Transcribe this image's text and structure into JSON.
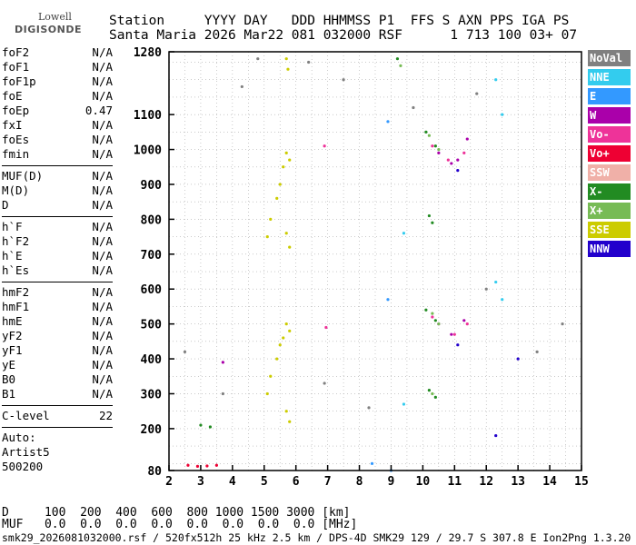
{
  "logo": {
    "line1": "Lowell",
    "line2": "DIGISONDE"
  },
  "header": {
    "line1": "Station     YYYY DAY   DDD HHMMSS P1  FFS S AXN PPS IGA PS",
    "line2": "Santa Maria 2026 Mar22 081 032000 RSF      1 713 100 03+ 07"
  },
  "params": {
    "group1": [
      {
        "k": "foF2",
        "v": "N/A"
      },
      {
        "k": "foF1",
        "v": "N/A"
      },
      {
        "k": "foF1p",
        "v": "N/A"
      },
      {
        "k": "foE",
        "v": "N/A"
      },
      {
        "k": "foEp",
        "v": "0.47"
      },
      {
        "k": "fxI",
        "v": "N/A"
      },
      {
        "k": "foEs",
        "v": "N/A"
      },
      {
        "k": "fmin",
        "v": "N/A"
      }
    ],
    "group2": [
      {
        "k": "MUF(D)",
        "v": "N/A"
      },
      {
        "k": "M(D)",
        "v": "N/A"
      },
      {
        "k": "D",
        "v": "N/A"
      }
    ],
    "group3": [
      {
        "k": "h`F",
        "v": "N/A"
      },
      {
        "k": "h`F2",
        "v": "N/A"
      },
      {
        "k": "h`E",
        "v": "N/A"
      },
      {
        "k": "h`Es",
        "v": "N/A"
      }
    ],
    "group4": [
      {
        "k": "hmF2",
        "v": "N/A"
      },
      {
        "k": "hmF1",
        "v": "N/A"
      },
      {
        "k": "hmE",
        "v": "N/A"
      },
      {
        "k": "yF2",
        "v": "N/A"
      },
      {
        "k": "yF1",
        "v": "N/A"
      },
      {
        "k": "yE",
        "v": "N/A"
      },
      {
        "k": "B0",
        "v": "N/A"
      },
      {
        "k": "B1",
        "v": "N/A"
      }
    ],
    "clevel": {
      "k": "C-level",
      "v": "22"
    },
    "auto": [
      "Auto:",
      "Artist5",
      "500200"
    ]
  },
  "legend": [
    {
      "label": "NoVal",
      "color": "#808080"
    },
    {
      "label": "NNE",
      "color": "#33ccee"
    },
    {
      "label": "E",
      "color": "#3399ff"
    },
    {
      "label": "W",
      "color": "#aa00aa"
    },
    {
      "label": "Vo-",
      "color": "#ee3399"
    },
    {
      "label": "Vo+",
      "color": "#ee0033"
    },
    {
      "label": "SSW",
      "color": "#f0b0a8"
    },
    {
      "label": "X-",
      "color": "#228b22"
    },
    {
      "label": "X+",
      "color": "#77bb55"
    },
    {
      "label": "SSE",
      "color": "#cccc00"
    },
    {
      "label": "NNW",
      "color": "#2200cc"
    }
  ],
  "chart_data": {
    "type": "scatter",
    "title": "",
    "xlabel": "",
    "ylabel": "",
    "xlim": [
      2,
      15
    ],
    "ylim": [
      80,
      1280
    ],
    "x_ticks": [
      2,
      3,
      4,
      5,
      6,
      7,
      8,
      9,
      10,
      11,
      12,
      13,
      14,
      15
    ],
    "y_ticks": [
      80,
      200,
      300,
      400,
      500,
      600,
      700,
      800,
      900,
      1000,
      1100,
      1280
    ],
    "grid": true,
    "series": [
      {
        "color": "#cccc00",
        "points": [
          [
            5.7,
            1260
          ],
          [
            5.75,
            1230
          ],
          [
            5.7,
            990
          ],
          [
            5.8,
            970
          ],
          [
            5.6,
            950
          ],
          [
            5.5,
            900
          ],
          [
            5.4,
            860
          ],
          [
            5.2,
            800
          ],
          [
            5.1,
            750
          ],
          [
            5.7,
            760
          ],
          [
            5.8,
            720
          ],
          [
            5.7,
            500
          ],
          [
            5.8,
            480
          ],
          [
            5.6,
            460
          ],
          [
            5.5,
            440
          ],
          [
            5.4,
            400
          ],
          [
            5.2,
            350
          ],
          [
            5.1,
            300
          ],
          [
            5.7,
            250
          ],
          [
            5.8,
            220
          ]
        ]
      },
      {
        "color": "#ee3399",
        "points": [
          [
            6.9,
            1010
          ],
          [
            6.95,
            490
          ],
          [
            10.3,
            1010
          ],
          [
            10.8,
            970
          ],
          [
            11.3,
            990
          ],
          [
            10.3,
            520
          ],
          [
            11.0,
            470
          ],
          [
            11.4,
            500
          ]
        ]
      },
      {
        "color": "#aa00aa",
        "points": [
          [
            10.5,
            990
          ],
          [
            10.9,
            960
          ],
          [
            11.1,
            970
          ],
          [
            11.4,
            1030
          ],
          [
            10.5,
            500
          ],
          [
            10.9,
            470
          ],
          [
            11.3,
            510
          ],
          [
            3.7,
            390
          ]
        ]
      },
      {
        "color": "#228b22",
        "points": [
          [
            10.1,
            1050
          ],
          [
            10.4,
            1010
          ],
          [
            10.2,
            810
          ],
          [
            10.3,
            790
          ],
          [
            10.1,
            540
          ],
          [
            10.4,
            510
          ],
          [
            10.2,
            310
          ],
          [
            10.4,
            290
          ],
          [
            9.2,
            1260
          ],
          [
            3.3,
            205
          ],
          [
            3.0,
            210
          ]
        ]
      },
      {
        "color": "#77bb55",
        "points": [
          [
            10.2,
            1040
          ],
          [
            10.5,
            1000
          ],
          [
            10.3,
            530
          ],
          [
            10.5,
            500
          ],
          [
            10.3,
            300
          ],
          [
            9.3,
            1240
          ]
        ]
      },
      {
        "color": "#3399ff",
        "points": [
          [
            8.4,
            100
          ],
          [
            8.9,
            1080
          ],
          [
            8.9,
            570
          ],
          [
            9.0,
            80
          ]
        ]
      },
      {
        "color": "#33ccee",
        "points": [
          [
            12.3,
            1200
          ],
          [
            12.5,
            1100
          ],
          [
            12.3,
            620
          ],
          [
            12.5,
            570
          ],
          [
            9.4,
            760
          ],
          [
            9.4,
            270
          ]
        ]
      },
      {
        "color": "#2200cc",
        "points": [
          [
            11.1,
            940
          ],
          [
            11.1,
            440
          ],
          [
            12.3,
            180
          ],
          [
            13.0,
            400
          ]
        ]
      },
      {
        "color": "#ee0033",
        "points": [
          [
            2.6,
            95
          ],
          [
            2.9,
            92
          ],
          [
            3.2,
            93
          ],
          [
            3.5,
            95
          ]
        ]
      },
      {
        "color": "#808080",
        "points": [
          [
            4.3,
            1180
          ],
          [
            4.8,
            1260
          ],
          [
            6.4,
            1250
          ],
          [
            7.5,
            1200
          ],
          [
            9.7,
            1120
          ],
          [
            11.7,
            1160
          ],
          [
            12.0,
            600
          ],
          [
            13.6,
            420
          ],
          [
            14.4,
            500
          ],
          [
            2.5,
            420
          ],
          [
            3.7,
            300
          ],
          [
            6.9,
            330
          ],
          [
            8.3,
            260
          ]
        ]
      }
    ]
  },
  "bottom": {
    "d_line": "D     100  200  400  600  800 1000 1500 3000 [km]",
    "muf_line": "MUF   0.0  0.0  0.0  0.0  0.0  0.0  0.0  0.0 [MHz]"
  },
  "footer": "smk29_2026081032000.rsf / 520fx512h 25 kHz 2.5 km / DPS-4D SMK29 129 / 29.7 S 307.8 E Ion2Png 1.3.20"
}
